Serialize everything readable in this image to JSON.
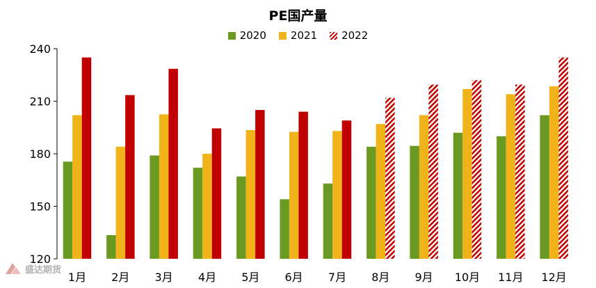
{
  "chart_data": {
    "type": "bar",
    "title": "PE国产量",
    "xlabel": "",
    "ylabel": "",
    "categories": [
      "1月",
      "2月",
      "3月",
      "4月",
      "5月",
      "6月",
      "7月",
      "8月",
      "9月",
      "10月",
      "11月",
      "12月"
    ],
    "ylim": [
      120,
      240
    ],
    "yticks": [
      "240",
      "210",
      "180",
      "150",
      "120"
    ],
    "grid": false,
    "legend_position": "top-center",
    "series": [
      {
        "name": "2020",
        "color": "#6b9a22",
        "pattern": "solid",
        "values": [
          175.5,
          133.5,
          179,
          172,
          167,
          154,
          163,
          184,
          184.5,
          192,
          190,
          202
        ]
      },
      {
        "name": "2021",
        "color": "#f0b41a",
        "pattern": "solid",
        "values": [
          202,
          184,
          202.5,
          180,
          193.5,
          192.5,
          193,
          197,
          202,
          217,
          214,
          218.5
        ]
      },
      {
        "name": "2022",
        "color": "#c00000",
        "pattern": "solid-then-hatched",
        "values": [
          235,
          213.5,
          228.5,
          194.5,
          205,
          204,
          199,
          212,
          219.5,
          222,
          219.5,
          235
        ]
      }
    ],
    "hatched_from_index": 7
  },
  "watermark": {
    "text": "盛达期货",
    "icon": "logo-icon"
  }
}
